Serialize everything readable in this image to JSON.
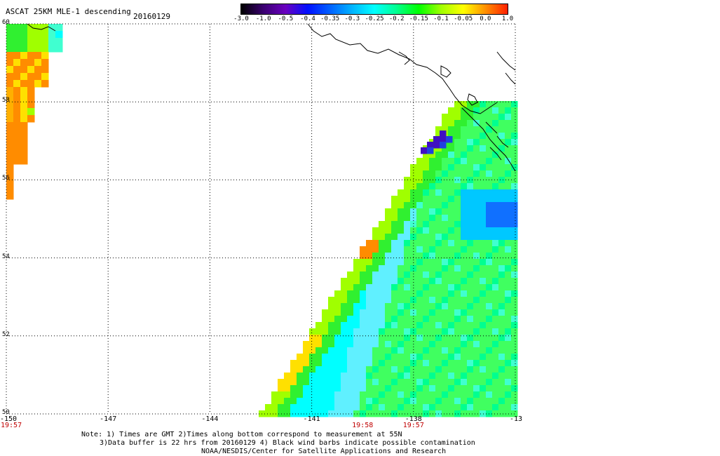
{
  "header": {
    "title": "ASCAT 25KM MLE-1 descending",
    "date": "20160129"
  },
  "colorbar": {
    "ticks": [
      "-3.0",
      "-1.0",
      "-0.5",
      "-0.4",
      "-0.35",
      "-0.3",
      "-0.25",
      "-0.2",
      "-0.15",
      "-0.1",
      "-0.05",
      "0.0",
      "1.0"
    ],
    "colors": [
      "#000000",
      "#3a0070",
      "#6a00c0",
      "#0010ff",
      "#0060ff",
      "#00b4ff",
      "#00ffff",
      "#00ff90",
      "#00ff00",
      "#a0ff00",
      "#ffff00",
      "#ff9000",
      "#ff2000"
    ]
  },
  "axes": {
    "lat_labels": [
      "60",
      "58",
      "56",
      "54",
      "52",
      "50"
    ],
    "lon_labels": [
      "-150",
      "-147",
      "-144",
      "-141",
      "-138",
      "-13"
    ],
    "times": [
      {
        "lon": "-150",
        "time": "19:57"
      },
      {
        "lon": "-139.5",
        "time": "19:58"
      },
      {
        "lon": "-138",
        "time": "19:57"
      }
    ]
  },
  "footer": {
    "note_line1": "Note: 1) Times are GMT 2)Times along bottom correspond to measurement at 55N",
    "note_line2": "3)Data buffer is 22 hrs from 20160129 4) Black wind barbs indicate possible contamination",
    "credit": "NOAA/NESDIS/Center for Satellite Applications and Research"
  },
  "colors": {
    "time_label": "#c00000",
    "grid": "#000000",
    "background": "#ffffff"
  }
}
